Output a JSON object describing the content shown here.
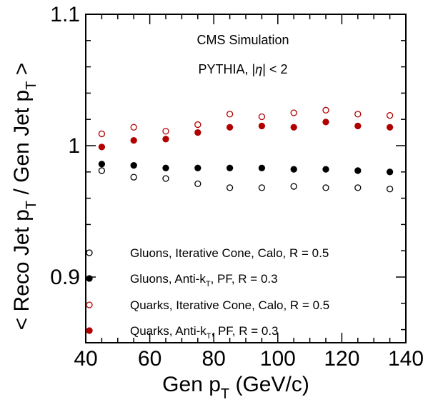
{
  "chart_data": {
    "type": "scatter",
    "xlabel_main": "Gen p",
    "xlabel_sub": "T",
    "xlabel_unit": " (GeV/c)",
    "ylabel_p1": "< Reco Jet p",
    "ylabel_sub1": "T",
    "ylabel_p2": " / Gen Jet p",
    "ylabel_sub2": "T",
    "ylabel_p3": " >",
    "xlim": [
      40,
      140
    ],
    "ylim": [
      0.85,
      1.1
    ],
    "x_ticks": [
      "40",
      "60",
      "80",
      "100",
      "120",
      "140"
    ],
    "y_ticks": [
      "0.9",
      "1",
      "1.1"
    ],
    "annotation_line1": "CMS Simulation",
    "annotation_line2_pre": "PYTHIA, |",
    "annotation_line2_eta": "η",
    "annotation_line2_post": "| < 2",
    "legend_placement": "bottom-left",
    "x": [
      45,
      55,
      65,
      75,
      85,
      95,
      105,
      115,
      125,
      135
    ],
    "series": [
      {
        "legend_pre": "Gluons, Iterative Cone, Calo, R = 0.5",
        "legend_sub": "",
        "legend_post": "",
        "color": "#000000",
        "filled": false,
        "values": [
          0.981,
          0.976,
          0.975,
          0.971,
          0.968,
          0.968,
          0.969,
          0.968,
          0.968,
          0.967
        ]
      },
      {
        "legend_pre": "Gluons, Anti-k",
        "legend_sub": "T",
        "legend_post": ", PF, R = 0.3",
        "color": "#000000",
        "filled": true,
        "values": [
          0.986,
          0.985,
          0.983,
          0.983,
          0.983,
          0.983,
          0.982,
          0.982,
          0.981,
          0.98
        ]
      },
      {
        "legend_pre": "Quarks, Iterative Cone, Calo, R = 0.5",
        "legend_sub": "",
        "legend_post": "",
        "color": "#b00000",
        "filled": false,
        "values": [
          1.009,
          1.014,
          1.011,
          1.016,
          1.024,
          1.022,
          1.025,
          1.027,
          1.024,
          1.023
        ]
      },
      {
        "legend_pre": "Quarks, Anti-k",
        "legend_sub": "T",
        "legend_post": ", PF, R = 0.3",
        "color": "#b00000",
        "filled": true,
        "values": [
          0.999,
          1.004,
          1.005,
          1.01,
          1.014,
          1.015,
          1.014,
          1.018,
          1.015,
          1.014
        ]
      }
    ]
  }
}
